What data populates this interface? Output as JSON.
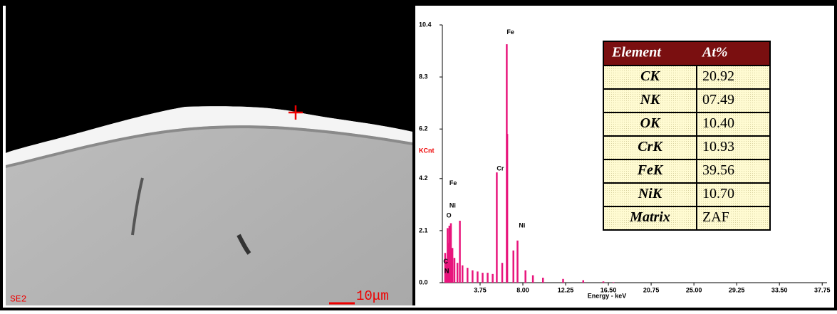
{
  "image": {
    "detector_label": "SE2",
    "scale_bar_label": "10μm"
  },
  "chart_data": {
    "type": "spikes",
    "y_label": "KCnt",
    "x_label": "Energy - keV",
    "color": "#e8157c",
    "x": [
      0.28,
      0.39,
      0.52,
      0.6,
      0.7,
      0.85,
      1.0,
      1.2,
      1.5,
      1.74,
      2.0,
      2.5,
      3.0,
      3.5,
      4.0,
      4.5,
      5.0,
      5.41,
      5.95,
      6.4,
      6.45,
      7.06,
      7.47,
      8.26,
      9.0,
      10.0,
      12.0,
      14.0,
      16.0,
      17.0
    ],
    "values": [
      1.2,
      0.9,
      2.2,
      1.6,
      2.3,
      2.4,
      1.4,
      1.0,
      0.8,
      2.5,
      0.7,
      0.6,
      0.5,
      0.45,
      0.4,
      0.4,
      0.35,
      4.45,
      0.8,
      9.62,
      6.0,
      1.3,
      1.7,
      0.5,
      0.3,
      0.2,
      0.15,
      0.1,
      0.05,
      0.02
    ],
    "xlim": [
      0,
      38.23
    ],
    "ylim": [
      0,
      10.4
    ],
    "xticks": [
      3.75,
      {
        "value": 8,
        "label": "8.00"
      },
      12.25,
      {
        "value": 16.5,
        "label": "16.50"
      },
      20.75,
      {
        "value": 25,
        "label": "25.00"
      },
      29.25,
      {
        "value": 33.5,
        "label": "33.50"
      },
      37.75
    ],
    "yticks": [
      {
        "value": 0,
        "label": "0.0"
      },
      2.1,
      4.2,
      6.2,
      8.3,
      10.4
    ],
    "annotations": [
      {
        "text": "Fe",
        "x": 6.4,
        "y": 10.1
      },
      {
        "text": "Cr",
        "x": 5.41,
        "y": 4.6
      },
      {
        "text": "Ni",
        "x": 7.6,
        "y": 2.3
      },
      {
        "text": "Fe",
        "x": 0.7,
        "y": 4.0
      },
      {
        "text": "Ni",
        "x": 0.7,
        "y": 3.1
      },
      {
        "text": "O",
        "x": 0.4,
        "y": 2.7
      },
      {
        "text": "C",
        "x": 0.1,
        "y": 0.85
      },
      {
        "text": "N",
        "x": 0.2,
        "y": 0.45
      }
    ]
  },
  "table": {
    "header": [
      "Element",
      "At%"
    ],
    "rows": [
      [
        "CK",
        "20.92"
      ],
      [
        "NK",
        "07.49"
      ],
      [
        "OK",
        "10.40"
      ],
      [
        "CrK",
        "10.93"
      ],
      [
        "FeK",
        "39.56"
      ],
      [
        "NiK",
        "10.70"
      ],
      [
        "Matrix",
        "ZAF"
      ]
    ]
  }
}
